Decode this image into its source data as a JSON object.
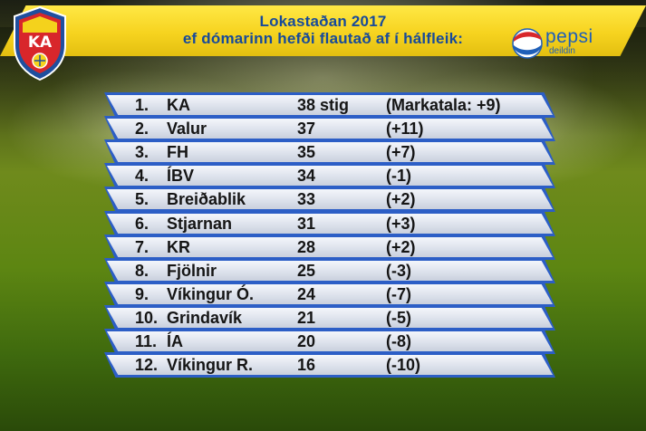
{
  "title": {
    "line1": "Lokastaðan 2017",
    "line2": "ef dómarinn hefði flautað af í hálfleik:"
  },
  "sponsor": {
    "name": "pepsi",
    "subtitle": "deildin"
  },
  "crest": {
    "letters": "KA"
  },
  "colors": {
    "banner": "#f6d31f",
    "title_text": "#174a9a",
    "row_border": "#2c5ec6"
  },
  "standings": [
    {
      "rank": "1.",
      "team": "KA",
      "points": "38 stig",
      "goal_diff": "(Markatala: +9)"
    },
    {
      "rank": "2.",
      "team": "Valur",
      "points": "37",
      "goal_diff": "(+11)"
    },
    {
      "rank": "3.",
      "team": "FH",
      "points": "35",
      "goal_diff": "(+7)"
    },
    {
      "rank": "4.",
      "team": "ÍBV",
      "points": "34",
      "goal_diff": "(-1)"
    },
    {
      "rank": "5.",
      "team": "Breiðablik",
      "points": "33",
      "goal_diff": "(+2)"
    },
    {
      "rank": "6.",
      "team": "Stjarnan",
      "points": "31",
      "goal_diff": "(+3)"
    },
    {
      "rank": "7.",
      "team": "KR",
      "points": "28",
      "goal_diff": "(+2)"
    },
    {
      "rank": "8.",
      "team": "Fjölnir",
      "points": "25",
      "goal_diff": "(-3)"
    },
    {
      "rank": "9.",
      "team": "Víkingur Ó.",
      "points": "24",
      "goal_diff": "(-7)"
    },
    {
      "rank": "10.",
      "team": "Grindavík",
      "points": "21",
      "goal_diff": "(-5)"
    },
    {
      "rank": "11.",
      "team": "ÍA",
      "points": "20",
      "goal_diff": "(-8)"
    },
    {
      "rank": "12.",
      "team": "Víkingur R.",
      "points": "16",
      "goal_diff": "(-10)"
    }
  ]
}
